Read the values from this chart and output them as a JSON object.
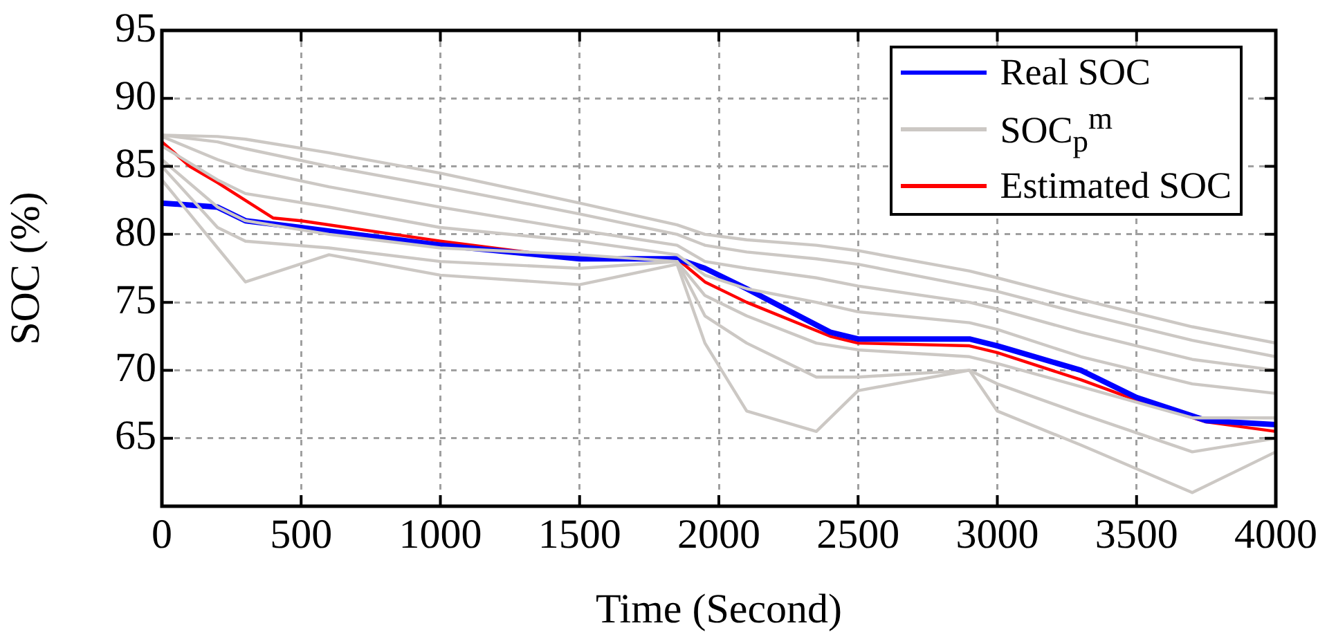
{
  "chart_data": {
    "type": "line",
    "xlabel": "Time (Second)",
    "ylabel": "SOC (%)",
    "xlim": [
      0,
      4000
    ],
    "xticks": [
      0,
      500,
      1000,
      1500,
      2000,
      2500,
      3000,
      3500,
      4000
    ],
    "ylim": [
      60,
      95
    ],
    "yticks": [
      65,
      70,
      75,
      80,
      85,
      90,
      95
    ],
    "grid": true,
    "legend": "top right",
    "line_style": "solid",
    "marker": "none",
    "series": [
      {
        "color": "#ccc8c4",
        "x": [
          0,
          200,
          300,
          600,
          1000,
          1500,
          1850,
          1950,
          2100,
          2350,
          2500,
          2900,
          3000,
          3300,
          3700,
          4000
        ],
        "values": [
          84,
          79,
          76.5,
          78.5,
          77,
          76.3,
          77.8,
          72,
          67,
          65.5,
          68.5,
          70,
          67,
          64.5,
          61,
          64
        ]
      },
      {
        "color": "#ccc8c4",
        "x": [
          0,
          200,
          300,
          600,
          1000,
          1500,
          1850,
          1950,
          2100,
          2350,
          2500,
          2900,
          3000,
          3300,
          3700,
          4000
        ],
        "values": [
          85,
          80.5,
          79.5,
          79,
          78,
          77.5,
          78,
          74,
          72,
          69.5,
          69.5,
          70,
          69,
          66.8,
          64,
          65
        ]
      },
      {
        "color": "#ccc8c4",
        "x": [
          0,
          200,
          300,
          600,
          1000,
          1500,
          1850,
          1950,
          2100,
          2350,
          2500,
          2900,
          3000,
          3300,
          3700,
          4000
        ],
        "values": [
          85.5,
          82,
          81,
          80,
          79,
          78.5,
          78,
          75.5,
          74,
          72,
          71.5,
          71,
          70.5,
          68.8,
          66.5,
          66.5
        ]
      },
      {
        "color": "#ccc8c4",
        "x": [
          0,
          200,
          300,
          600,
          1000,
          1500,
          1850,
          1950,
          2100,
          2350,
          2500,
          2900,
          3000,
          3300,
          3700,
          4000
        ],
        "values": [
          86.5,
          84,
          83,
          82,
          80.5,
          79.5,
          78.5,
          77,
          76,
          75,
          74.3,
          73.5,
          73,
          71,
          69,
          68.3
        ]
      },
      {
        "color": "#ccc8c4",
        "x": [
          0,
          200,
          300,
          600,
          1000,
          1500,
          1850,
          1950,
          2100,
          2350,
          2500,
          2900,
          3000,
          3300,
          3700,
          4000
        ],
        "values": [
          87.2,
          85.5,
          84.8,
          83.5,
          82,
          80.3,
          79.2,
          78,
          77.5,
          76.8,
          76.2,
          75,
          74.5,
          72.8,
          70.8,
          70
        ]
      },
      {
        "color": "#ccc8c4",
        "x": [
          0,
          200,
          300,
          600,
          1000,
          1500,
          1850,
          1950,
          2100,
          2350,
          2500,
          2900,
          3000,
          3300,
          3700,
          4000
        ],
        "values": [
          87.3,
          86.8,
          86.3,
          85,
          83.5,
          81.5,
          80,
          79.2,
          78.7,
          78.2,
          77.8,
          76.2,
          75.8,
          74.2,
          72.2,
          71
        ]
      },
      {
        "name": "SOC$_{p}$$^{m}$",
        "color": "#ccc8c4",
        "x": [
          0,
          200,
          300,
          600,
          1000,
          1500,
          1850,
          1950,
          2100,
          2350,
          2500,
          2900,
          3000,
          3300,
          3700,
          4000
        ],
        "values": [
          87.3,
          87.2,
          87,
          86,
          84.5,
          82.3,
          80.7,
          80,
          79.6,
          79.2,
          78.8,
          77.3,
          76.8,
          75.2,
          73.2,
          72
        ]
      },
      {
        "name": "Real SOC",
        "color": "#0000ff",
        "x": [
          0,
          200,
          300,
          500,
          1000,
          1500,
          1850,
          1950,
          2100,
          2400,
          2500,
          2900,
          3000,
          3300,
          3500,
          3750,
          4000
        ],
        "values": [
          82.3,
          82,
          81,
          80.5,
          79.2,
          78.2,
          78.2,
          77.5,
          76,
          72.8,
          72.3,
          72.3,
          71.8,
          70,
          68,
          66.3,
          66
        ]
      },
      {
        "name": "Estimated SOC",
        "color": "#ff0000",
        "x": [
          0,
          100,
          200,
          400,
          500,
          1000,
          1500,
          1850,
          1950,
          2100,
          2400,
          2500,
          2900,
          3000,
          3300,
          3500,
          3750,
          4000
        ],
        "values": [
          86.8,
          85,
          83.8,
          81.2,
          81,
          79.5,
          78.2,
          78.2,
          76.5,
          75,
          72.5,
          72,
          71.8,
          71.3,
          69.3,
          67.8,
          66.2,
          65.5
        ]
      }
    ]
  }
}
